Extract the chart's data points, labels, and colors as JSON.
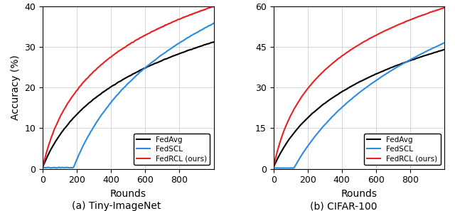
{
  "subplot1": {
    "title": "(a) Tiny-ImageNet",
    "xlabel": "Rounds",
    "ylabel": "Accuracy (%)",
    "xlim": [
      0,
      1000
    ],
    "ylim": [
      0,
      40
    ],
    "yticks": [
      0,
      10,
      20,
      30,
      40
    ],
    "xticks": [
      0,
      200,
      400,
      600,
      800
    ],
    "fedavg_end": 31.2,
    "fedscl_end": 35.8,
    "fedrcl_end": 40.0,
    "fedavg_start": 0.5,
    "fedscl_start": 0.3,
    "fedrcl_start": 0.5,
    "fedavg_log_k": 7,
    "fedscl_log_k": 4,
    "fedscl_delay": 0.18,
    "fedrcl_log_k": 12
  },
  "subplot2": {
    "title": "(b) CIFAR-100",
    "xlabel": "Rounds",
    "ylabel": "Accuracy (%)",
    "xlim": [
      0,
      1000
    ],
    "ylim": [
      0,
      60
    ],
    "yticks": [
      0,
      15,
      30,
      45,
      60
    ],
    "xticks": [
      0,
      200,
      400,
      600,
      800
    ],
    "fedavg_end": 44.0,
    "fedscl_end": 46.5,
    "fedrcl_end": 59.5,
    "fedavg_start": 0.5,
    "fedscl_start": 0.3,
    "fedrcl_start": 0.5,
    "fedavg_log_k": 7,
    "fedscl_log_k": 3,
    "fedscl_delay": 0.12,
    "fedrcl_log_k": 14
  },
  "colors": {
    "fedavg": "#000000",
    "fedscl": "#2b8be0",
    "fedrcl": "#e82020"
  },
  "legend_labels": [
    "FedAvg",
    "FedSCL",
    "FedRCL (ours)"
  ],
  "line_width": 1.5,
  "n_points": 1000,
  "noise_sigma": 0.08,
  "noise_smooth": 8
}
